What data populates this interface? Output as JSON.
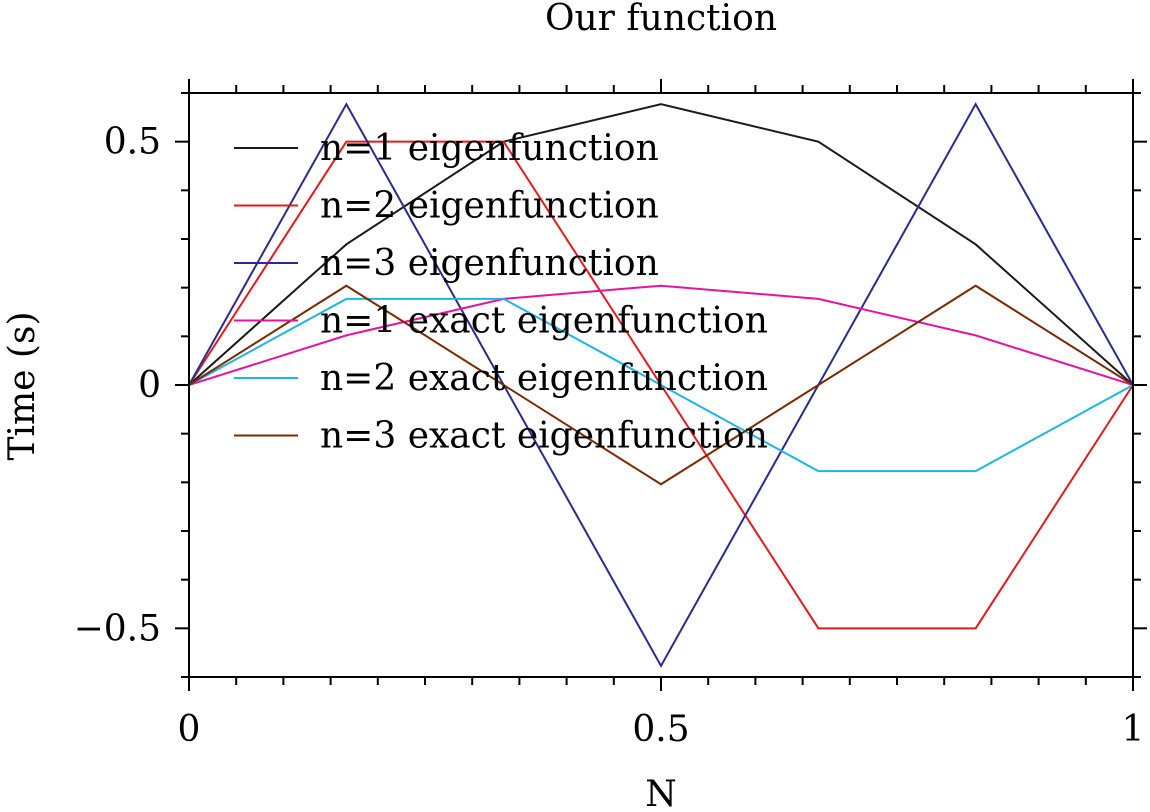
{
  "chart_data": {
    "type": "line",
    "title": "Our function",
    "xlabel": "N",
    "ylabel": "Time (s)",
    "xlim": [
      0,
      1
    ],
    "ylim": [
      -0.6,
      0.6
    ],
    "xticks": [
      0,
      0.5,
      1
    ],
    "xtick_labels": [
      "0",
      "0.5",
      "1"
    ],
    "xminor_step": 0.05,
    "yticks": [
      -0.5,
      0,
      0.5
    ],
    "ytick_labels": [
      "−0.5",
      "0",
      "0.5"
    ],
    "yminor_step": 0.1,
    "grid": false,
    "legend_position": "top-left",
    "x": [
      0,
      0.1667,
      0.3333,
      0.5,
      0.6667,
      0.8333,
      1
    ],
    "series": [
      {
        "name": "n=1 eigenfunction",
        "color": "#1a1a1a",
        "values": [
          0,
          0.289,
          0.5,
          0.577,
          0.5,
          0.289,
          0
        ]
      },
      {
        "name": "n=2 eigenfunction",
        "color": "#e41a1c",
        "values": [
          0,
          0.5,
          0.5,
          0,
          -0.5,
          -0.5,
          0
        ]
      },
      {
        "name": "n=3 eigenfunction",
        "color": "#2b2b8f",
        "values": [
          0,
          0.577,
          0,
          -0.577,
          0,
          0.577,
          0
        ]
      },
      {
        "name": "n=1 exact eigenfunction",
        "color": "#e6149c",
        "values": [
          0,
          0.102,
          0.177,
          0.204,
          0.177,
          0.102,
          0
        ]
      },
      {
        "name": "n=2 exact eigenfunction",
        "color": "#1eb4e6",
        "values": [
          0,
          0.177,
          0.177,
          0,
          -0.177,
          -0.177,
          0
        ]
      },
      {
        "name": "n=3 exact eigenfunction",
        "color": "#7a2a00",
        "values": [
          0,
          0.204,
          0,
          -0.204,
          0,
          0.204,
          0
        ]
      }
    ]
  }
}
